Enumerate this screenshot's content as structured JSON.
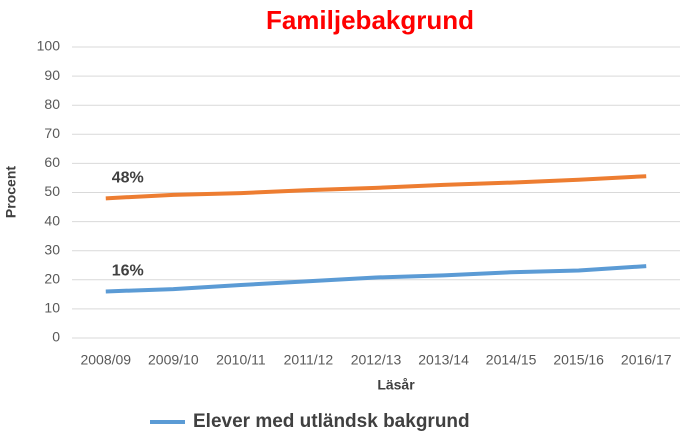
{
  "chart_data": {
    "type": "line",
    "title": "Familjebakgrund",
    "x_label": "Läsår",
    "y_label": "Procent",
    "categories": [
      "2008/09",
      "2009/10",
      "2010/11",
      "2011/12",
      "2012/13",
      "2013/14",
      "2014/15",
      "2015/16",
      "2016/17"
    ],
    "series": [
      {
        "color": "#ed7d31",
        "values": [
          48,
          49.2,
          49.8,
          50.8,
          51.6,
          52.6,
          53.4,
          54.4,
          55.6
        ],
        "value_labels": [
          "48%",
          null,
          null,
          null,
          null,
          null,
          null,
          null,
          null
        ]
      },
      {
        "name": "Elever med utländsk bakgrund",
        "color": "#5b9bd5",
        "values": [
          16,
          16.8,
          18.2,
          19.5,
          20.8,
          21.5,
          22.6,
          23.2,
          24.7
        ],
        "value_labels": [
          "16%",
          null,
          null,
          null,
          null,
          null,
          null,
          null,
          null
        ]
      }
    ],
    "ylim": [
      0,
      100
    ],
    "yticks": [
      0,
      10,
      20,
      30,
      40,
      50,
      60,
      70,
      80,
      90,
      100
    ],
    "grid": true
  }
}
